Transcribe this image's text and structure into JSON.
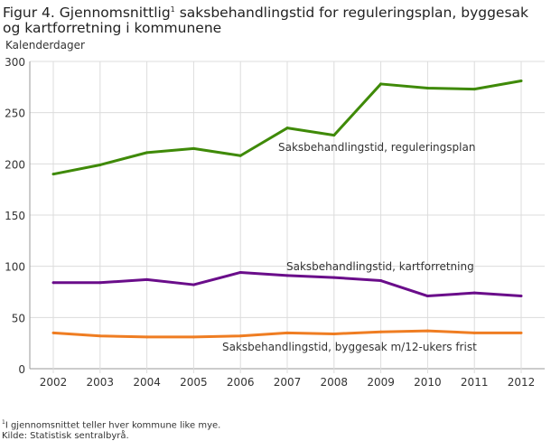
{
  "title": "Figur 4. Gjennomsnittlig",
  "title_sup": "1",
  "title_rest": " saksbehandlingstid for reguleringsplan, byggesak og kartforretning i kommunene",
  "footnote_sup": "1",
  "footnote": "I gjennomsnittet teller hver kommune like mye.",
  "source": "Kilde: Statistisk sentralbyrå.",
  "chart_data": {
    "type": "line",
    "title": "Figur 4. Gjennomsnittlig saksbehandlingstid for reguleringsplan, byggesak og kartforretning i kommunene",
    "ylabel": "Kalenderdager",
    "xlabel": "",
    "ylim": [
      0,
      300
    ],
    "yticks": [
      0,
      50,
      100,
      150,
      200,
      250,
      300
    ],
    "grid": true,
    "categories": [
      "2002",
      "2003",
      "2004",
      "2005",
      "2006",
      "2007",
      "2008",
      "2009",
      "2010",
      "2011",
      "2012"
    ],
    "series": [
      {
        "name": "Saksbehandlingstid, reguleringsplan",
        "color": "#3f8a08",
        "values": [
          190,
          199,
          211,
          215,
          208,
          235,
          228,
          278,
          274,
          273,
          281
        ]
      },
      {
        "name": "Saksbehandlingstid, kartforretning",
        "color": "#6a0d8a",
        "values": [
          84,
          84,
          87,
          82,
          94,
          91,
          89,
          86,
          71,
          74,
          71
        ]
      },
      {
        "name": "Saksbehandlingstid, byggesak m/12-ukers frist",
        "color": "#ef7d22",
        "values": [
          35,
          32,
          31,
          31,
          32,
          35,
          34,
          36,
          37,
          35,
          35
        ]
      }
    ]
  }
}
